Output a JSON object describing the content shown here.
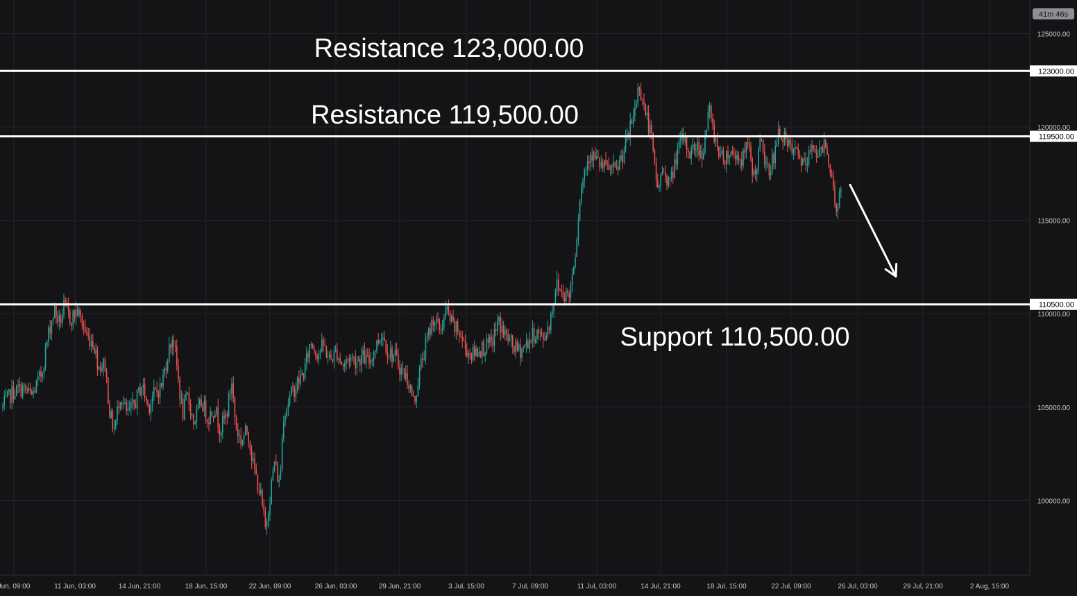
{
  "chart_data": {
    "type": "candlestick",
    "timer": "41m 46s",
    "y_axis": {
      "ylim": [
        96000,
        126800
      ],
      "ticks": [
        100000,
        105000,
        110000,
        115000,
        120000,
        125000
      ],
      "tick_labels": [
        "100000.00",
        "105000.00",
        "110000.00",
        "115000.00",
        "120000.00",
        "125000.00"
      ]
    },
    "x_axis": {
      "ticks": [
        "Jun, 09:00",
        "11 Jun, 03:00",
        "14 Jun, 21:00",
        "18 Jun, 15:00",
        "22 Jun, 09:00",
        "26 Jun, 03:00",
        "29 Jun, 21:00",
        "3 Jul, 15:00",
        "7 Jul, 09:00",
        "11 Jul, 03:00",
        "14 Jul, 21:00",
        "18 Jul, 15:00",
        "22 Jul, 09:00",
        "26 Jul, 03:00",
        "29 Jul, 21:00",
        "2 Aug, 15:00"
      ]
    },
    "levels": [
      {
        "kind": "resistance",
        "value": 123000,
        "axis_label": "123000.00",
        "text": "Resistance 123,000.00"
      },
      {
        "kind": "resistance",
        "value": 119500,
        "axis_label": "119500.00",
        "text": "Resistance 119,500.00"
      },
      {
        "kind": "support",
        "value": 110500,
        "axis_label": "110500.00",
        "text": "Support 110,500.00"
      }
    ],
    "projection_arrow": {
      "direction": "down",
      "from": {
        "date": "25 Jul",
        "price": 116900
      },
      "to": {
        "date": "27 Jul",
        "price": 112000
      }
    },
    "price_path": [
      {
        "x": 0,
        "p": 105000
      },
      {
        "x": 1.5,
        "p": 105800
      },
      {
        "x": 3,
        "p": 106000
      },
      {
        "x": 4.5,
        "p": 105600
      },
      {
        "x": 6,
        "p": 106800
      },
      {
        "x": 7.2,
        "p": 109200
      },
      {
        "x": 8,
        "p": 110200
      },
      {
        "x": 8.8,
        "p": 109500
      },
      {
        "x": 9.5,
        "p": 110400
      },
      {
        "x": 10.5,
        "p": 109700
      },
      {
        "x": 11.5,
        "p": 110200
      },
      {
        "x": 12.3,
        "p": 109500
      },
      {
        "x": 13,
        "p": 108800
      },
      {
        "x": 14,
        "p": 108500
      },
      {
        "x": 14.8,
        "p": 107200
      },
      {
        "x": 15.8,
        "p": 107300
      },
      {
        "x": 16.6,
        "p": 104500
      },
      {
        "x": 17.3,
        "p": 103800
      },
      {
        "x": 18.1,
        "p": 105700
      },
      {
        "x": 19.2,
        "p": 104600
      },
      {
        "x": 20.3,
        "p": 105100
      },
      {
        "x": 21.5,
        "p": 106200
      },
      {
        "x": 22.5,
        "p": 105000
      },
      {
        "x": 23.2,
        "p": 105600
      },
      {
        "x": 24.5,
        "p": 106100
      },
      {
        "x": 25.5,
        "p": 107800
      },
      {
        "x": 26.3,
        "p": 108900
      },
      {
        "x": 27,
        "p": 106900
      },
      {
        "x": 27.8,
        "p": 104600
      },
      {
        "x": 28.6,
        "p": 105600
      },
      {
        "x": 29.5,
        "p": 104200
      },
      {
        "x": 30.8,
        "p": 105300
      },
      {
        "x": 31.7,
        "p": 104400
      },
      {
        "x": 32.8,
        "p": 105000
      },
      {
        "x": 33.6,
        "p": 103800
      },
      {
        "x": 34.6,
        "p": 104600
      },
      {
        "x": 35.4,
        "p": 106400
      },
      {
        "x": 36,
        "p": 104000
      },
      {
        "x": 36.8,
        "p": 103200
      },
      {
        "x": 37.9,
        "p": 103800
      },
      {
        "x": 38.7,
        "p": 101900
      },
      {
        "x": 39.8,
        "p": 100400
      },
      {
        "x": 40.6,
        "p": 98500
      },
      {
        "x": 41.3,
        "p": 100200
      },
      {
        "x": 42,
        "p": 102100
      },
      {
        "x": 42.8,
        "p": 100800
      },
      {
        "x": 43.4,
        "p": 104600
      },
      {
        "x": 44.6,
        "p": 105700
      },
      {
        "x": 45.6,
        "p": 106300
      },
      {
        "x": 46.6,
        "p": 106900
      },
      {
        "x": 47.6,
        "p": 108500
      },
      {
        "x": 48.6,
        "p": 107900
      },
      {
        "x": 49.6,
        "p": 108300
      },
      {
        "x": 50.6,
        "p": 107500
      },
      {
        "x": 51.6,
        "p": 108000
      },
      {
        "x": 52.6,
        "p": 107200
      },
      {
        "x": 53.6,
        "p": 107700
      },
      {
        "x": 54.6,
        "p": 107500
      },
      {
        "x": 55.6,
        "p": 107700
      },
      {
        "x": 56.6,
        "p": 107400
      },
      {
        "x": 57.6,
        "p": 108200
      },
      {
        "x": 58.6,
        "p": 109000
      },
      {
        "x": 59.6,
        "p": 108000
      },
      {
        "x": 60.6,
        "p": 107700
      },
      {
        "x": 61.6,
        "p": 107000
      },
      {
        "x": 62.6,
        "p": 106500
      },
      {
        "x": 63.6,
        "p": 105200
      },
      {
        "x": 64.6,
        "p": 107200
      },
      {
        "x": 65.6,
        "p": 108600
      },
      {
        "x": 66.6,
        "p": 109800
      },
      {
        "x": 67.6,
        "p": 109100
      },
      {
        "x": 68.6,
        "p": 110200
      },
      {
        "x": 69.6,
        "p": 109300
      },
      {
        "x": 70.6,
        "p": 109000
      },
      {
        "x": 71.6,
        "p": 108100
      },
      {
        "x": 72.6,
        "p": 107800
      },
      {
        "x": 73.6,
        "p": 108100
      },
      {
        "x": 74.6,
        "p": 108200
      },
      {
        "x": 75.6,
        "p": 108400
      },
      {
        "x": 76.6,
        "p": 109600
      },
      {
        "x": 77.6,
        "p": 108900
      },
      {
        "x": 78.6,
        "p": 108400
      },
      {
        "x": 79.6,
        "p": 108000
      },
      {
        "x": 80.6,
        "p": 108200
      },
      {
        "x": 81.6,
        "p": 108700
      },
      {
        "x": 82.6,
        "p": 109000
      },
      {
        "x": 83.6,
        "p": 108600
      },
      {
        "x": 84.6,
        "p": 109600
      },
      {
        "x": 85.6,
        "p": 111600
      },
      {
        "x": 86.6,
        "p": 111100
      },
      {
        "x": 87.6,
        "p": 111000
      },
      {
        "x": 88.6,
        "p": 113600
      },
      {
        "x": 89.2,
        "p": 116200
      },
      {
        "x": 89.9,
        "p": 117600
      },
      {
        "x": 90.8,
        "p": 118700
      },
      {
        "x": 91.8,
        "p": 118200
      },
      {
        "x": 92.8,
        "p": 117800
      },
      {
        "x": 93.8,
        "p": 117800
      },
      {
        "x": 94.8,
        "p": 117600
      },
      {
        "x": 95.8,
        "p": 118500
      },
      {
        "x": 96.8,
        "p": 119600
      },
      {
        "x": 97.6,
        "p": 120800
      },
      {
        "x": 98.4,
        "p": 122300
      },
      {
        "x": 99.2,
        "p": 121000
      },
      {
        "x": 100.2,
        "p": 119600
      },
      {
        "x": 101.2,
        "p": 116700
      },
      {
        "x": 102.2,
        "p": 117700
      },
      {
        "x": 103.2,
        "p": 116900
      },
      {
        "x": 104.2,
        "p": 118600
      },
      {
        "x": 105.2,
        "p": 119400
      },
      {
        "x": 106.2,
        "p": 118600
      },
      {
        "x": 107.2,
        "p": 119000
      },
      {
        "x": 108.2,
        "p": 118600
      },
      {
        "x": 109.2,
        "p": 120900
      },
      {
        "x": 110.2,
        "p": 119300
      },
      {
        "x": 111.2,
        "p": 118300
      },
      {
        "x": 112.2,
        "p": 118600
      },
      {
        "x": 113.2,
        "p": 118600
      },
      {
        "x": 114.2,
        "p": 118200
      },
      {
        "x": 115.2,
        "p": 119000
      },
      {
        "x": 116.2,
        "p": 117300
      },
      {
        "x": 117.2,
        "p": 119200
      },
      {
        "x": 118.2,
        "p": 117600
      },
      {
        "x": 119.2,
        "p": 118400
      },
      {
        "x": 120.2,
        "p": 119900
      },
      {
        "x": 121.2,
        "p": 119000
      },
      {
        "x": 122.2,
        "p": 118700
      },
      {
        "x": 123.2,
        "p": 118400
      },
      {
        "x": 124.2,
        "p": 117800
      },
      {
        "x": 125.2,
        "p": 119200
      },
      {
        "x": 126.2,
        "p": 118400
      },
      {
        "x": 127.2,
        "p": 119400
      },
      {
        "x": 128,
        "p": 117600
      },
      {
        "x": 128.8,
        "p": 115600
      },
      {
        "x": 129.6,
        "p": 116600
      }
    ]
  }
}
